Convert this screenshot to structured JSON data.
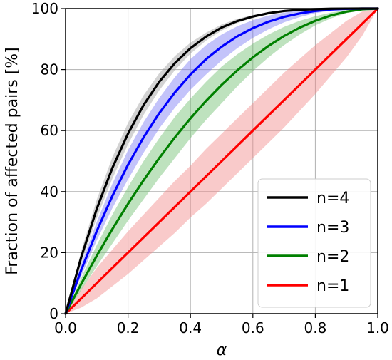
{
  "chart_data": {
    "type": "line",
    "title": "",
    "xlabel": "α",
    "ylabel": "Fraction of affected pairs [%]",
    "xlim": [
      0.0,
      1.0
    ],
    "ylim": [
      0,
      100
    ],
    "x_ticks": [
      0.0,
      0.2,
      0.4,
      0.6,
      0.8,
      1.0
    ],
    "x_tick_labels": [
      "0.0",
      "0.2",
      "0.4",
      "0.6",
      "0.8",
      "1.0"
    ],
    "y_ticks": [
      0,
      20,
      40,
      60,
      80,
      100
    ],
    "y_tick_labels": [
      "0",
      "20",
      "40",
      "60",
      "80",
      "100"
    ],
    "grid": true,
    "legend_position": "lower-right",
    "x": [
      0.0,
      0.05,
      0.1,
      0.15,
      0.2,
      0.25,
      0.3,
      0.35,
      0.4,
      0.45,
      0.5,
      0.55,
      0.6,
      0.65,
      0.7,
      0.75,
      0.8,
      0.85,
      0.9,
      0.95,
      1.0
    ],
    "series": [
      {
        "name": "n=4",
        "color": "#000000",
        "band_color": "#9e9e9e",
        "values": [
          0,
          18.5,
          34.4,
          47.8,
          59.0,
          68.4,
          76.0,
          82.1,
          87.0,
          90.8,
          93.8,
          95.9,
          97.4,
          98.5,
          99.2,
          99.6,
          99.8,
          99.95,
          99.99,
          100,
          100
        ],
        "lower": [
          0,
          16.5,
          31.4,
          44.3,
          55.5,
          65.2,
          73.2,
          79.8,
          85.2,
          89.5,
          92.8,
          95.2,
          97.0,
          98.2,
          99.0,
          99.5,
          99.8,
          99.9,
          99.99,
          100,
          100
        ],
        "upper": [
          0,
          20.5,
          37.4,
          51.3,
          62.5,
          71.6,
          78.8,
          84.4,
          88.8,
          92.1,
          94.8,
          96.6,
          97.9,
          98.8,
          99.4,
          99.7,
          99.9,
          99.97,
          100,
          100,
          100
        ]
      },
      {
        "name": "n=3",
        "color": "#0000ff",
        "band_color": "#7b7bf5",
        "values": [
          0,
          14.3,
          27.1,
          38.6,
          48.8,
          57.8,
          65.7,
          72.5,
          78.4,
          83.4,
          87.5,
          90.9,
          93.6,
          95.7,
          97.3,
          98.4,
          99.2,
          99.7,
          99.9,
          100,
          100
        ],
        "lower": [
          0,
          12.3,
          24.1,
          34.6,
          44.0,
          52.8,
          60.7,
          67.5,
          73.4,
          78.4,
          83.0,
          87.0,
          90.4,
          93.2,
          95.5,
          97.2,
          98.5,
          99.3,
          99.8,
          100,
          100
        ],
        "upper": [
          0,
          16.3,
          30.1,
          42.6,
          53.6,
          62.8,
          70.7,
          77.5,
          83.4,
          88.0,
          91.5,
          94.2,
          96.2,
          97.7,
          98.7,
          99.4,
          99.8,
          99.95,
          100,
          100,
          100
        ]
      },
      {
        "name": "n=2",
        "color": "#008000",
        "band_color": "#6fbf6f",
        "values": [
          0,
          9.75,
          19.0,
          27.75,
          36.0,
          43.75,
          51.0,
          57.75,
          64.0,
          69.75,
          75.0,
          79.75,
          84.0,
          87.75,
          91.0,
          93.75,
          96.0,
          97.75,
          99.0,
          99.75,
          100
        ],
        "lower": [
          0,
          7.75,
          15.5,
          23.0,
          30.5,
          37.5,
          44.5,
          51.0,
          57.5,
          63.5,
          69.0,
          74.5,
          79.5,
          84.0,
          88.0,
          91.5,
          94.5,
          96.8,
          98.5,
          99.6,
          100
        ],
        "upper": [
          0,
          11.75,
          22.5,
          32.5,
          41.5,
          50.0,
          57.5,
          64.5,
          70.5,
          76.0,
          81.0,
          85.0,
          88.5,
          91.5,
          94.0,
          96.0,
          97.5,
          98.7,
          99.5,
          99.9,
          100
        ]
      },
      {
        "name": "n=1",
        "color": "#ff0000",
        "band_color": "#f28a8a",
        "values": [
          0,
          5,
          10,
          15,
          20,
          25,
          30,
          35,
          40,
          45,
          50,
          55,
          60,
          65,
          70,
          75,
          80,
          85,
          90,
          95,
          100
        ],
        "lower": [
          0,
          2.0,
          5.0,
          9.0,
          13.0,
          17.5,
          22.0,
          26.5,
          31.5,
          36.0,
          41.0,
          46.0,
          51.0,
          56.0,
          61.0,
          66.5,
          72.0,
          78.0,
          84.0,
          91.0,
          100
        ],
        "upper": [
          0,
          8.0,
          15.0,
          21.0,
          27.0,
          32.5,
          38.0,
          43.5,
          48.5,
          54.0,
          59.0,
          64.0,
          69.0,
          74.0,
          79.0,
          83.5,
          88.0,
          92.0,
          96.0,
          99.0,
          100
        ]
      }
    ]
  }
}
